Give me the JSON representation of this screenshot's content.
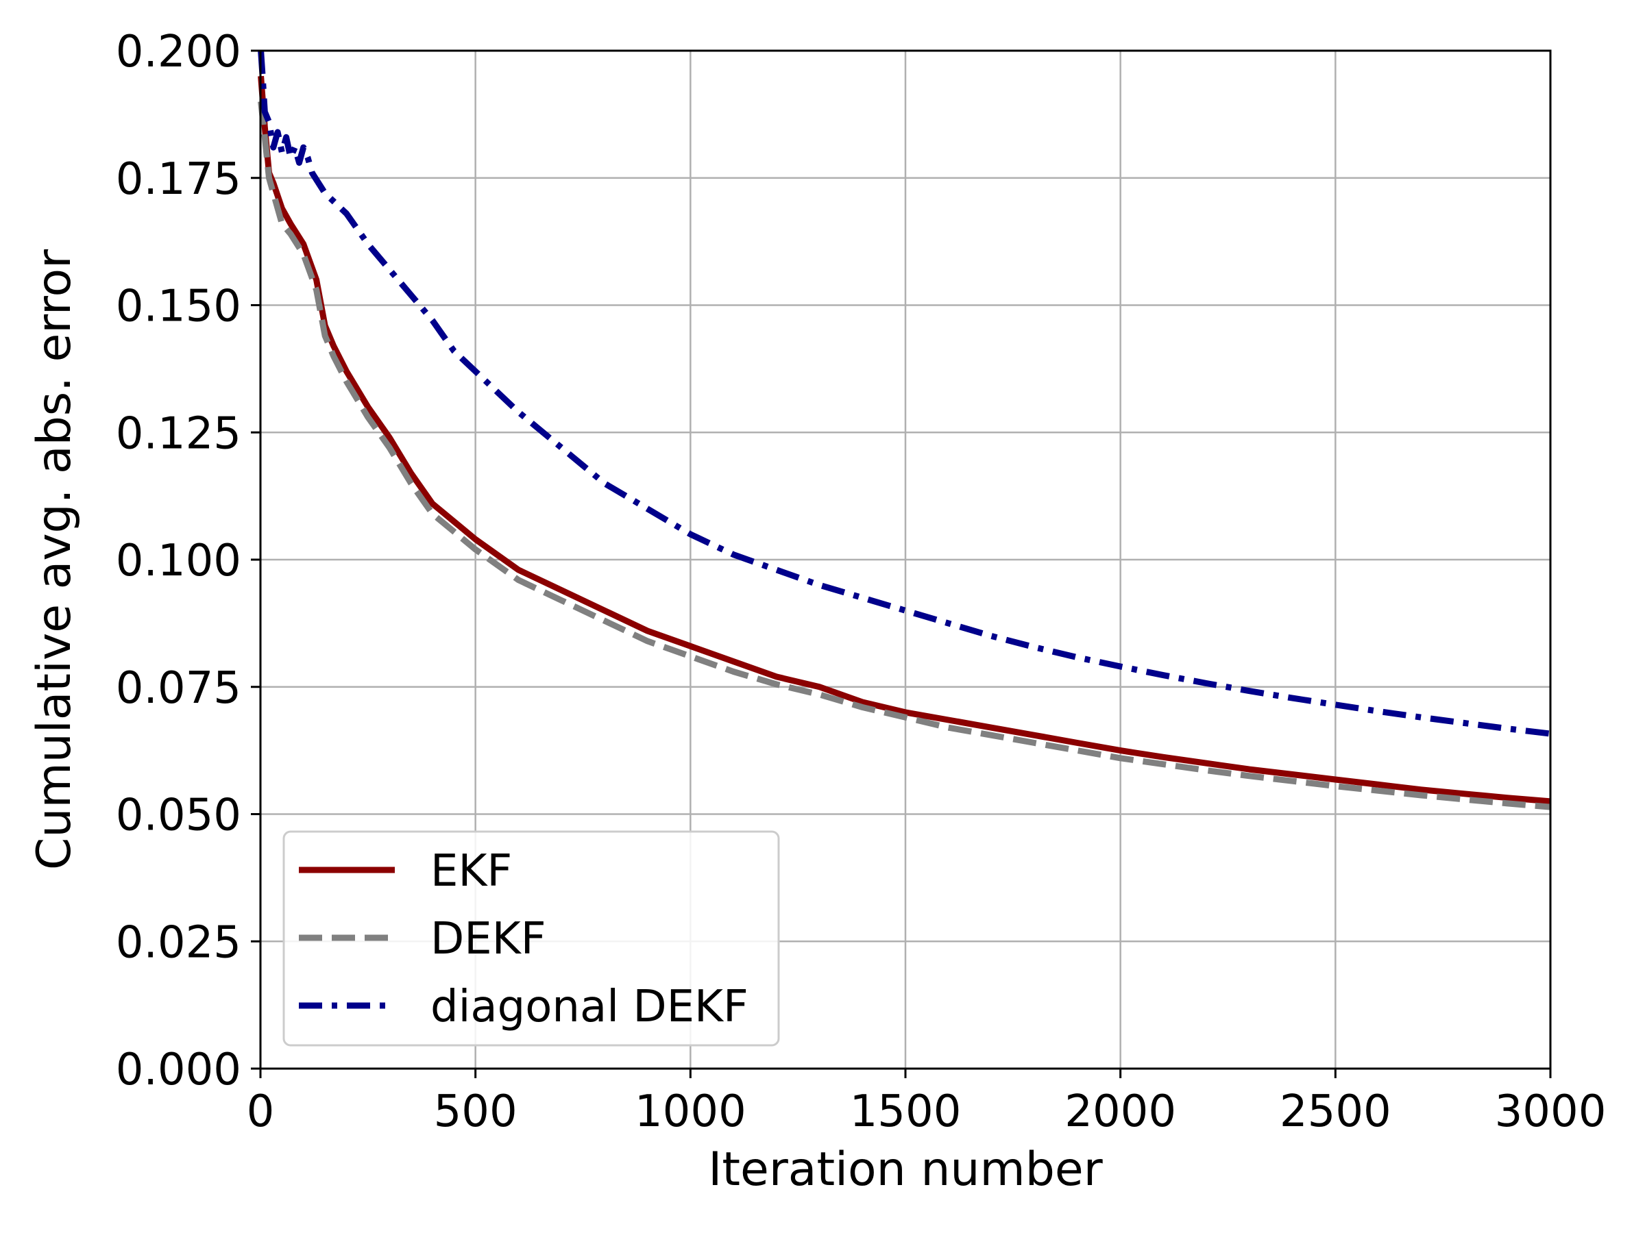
{
  "chart_data": {
    "type": "line",
    "xlabel": "Iteration number",
    "ylabel": "Cumulative avg. abs. error",
    "xlim": [
      0,
      3000
    ],
    "ylim": [
      0,
      0.2
    ],
    "xticks": [
      0,
      500,
      1000,
      1500,
      2000,
      2500,
      3000
    ],
    "xtick_labels": [
      "0",
      "500",
      "1000",
      "1500",
      "2000",
      "2500",
      "3000"
    ],
    "yticks": [
      0,
      0.025,
      0.05,
      0.075,
      0.1,
      0.125,
      0.15,
      0.175,
      0.2
    ],
    "ytick_labels": [
      "0.000",
      "0.025",
      "0.050",
      "0.075",
      "0.100",
      "0.125",
      "0.150",
      "0.175",
      "0.200"
    ],
    "grid": true,
    "legend_position": "lower-left",
    "series": [
      {
        "name": "EKF",
        "color": "#8b0000",
        "style": "solid",
        "x": [
          1,
          10,
          20,
          30,
          50,
          70,
          100,
          130,
          150,
          170,
          200,
          250,
          300,
          350,
          400,
          500,
          600,
          700,
          800,
          900,
          1000,
          1100,
          1200,
          1300,
          1400,
          1500,
          1600,
          1700,
          1800,
          1900,
          2000,
          2100,
          2200,
          2300,
          2400,
          2500,
          2600,
          2700,
          2800,
          2900,
          3000
        ],
        "y": [
          0.195,
          0.185,
          0.176,
          0.174,
          0.169,
          0.166,
          0.162,
          0.155,
          0.146,
          0.142,
          0.137,
          0.13,
          0.124,
          0.117,
          0.111,
          0.104,
          0.098,
          0.094,
          0.09,
          0.086,
          0.083,
          0.08,
          0.077,
          0.075,
          0.072,
          0.07,
          0.0685,
          0.067,
          0.0655,
          0.064,
          0.0625,
          0.0612,
          0.06,
          0.0588,
          0.0578,
          0.0568,
          0.0558,
          0.0548,
          0.054,
          0.0532,
          0.0525
        ]
      },
      {
        "name": "DEKF",
        "color": "#808080",
        "style": "dashed",
        "x": [
          1,
          10,
          20,
          30,
          50,
          70,
          100,
          130,
          150,
          170,
          200,
          250,
          300,
          350,
          400,
          500,
          600,
          700,
          800,
          900,
          1000,
          1100,
          1200,
          1300,
          1400,
          1500,
          1600,
          1700,
          1800,
          1900,
          2000,
          2100,
          2200,
          2300,
          2400,
          2500,
          2600,
          2700,
          2800,
          2900,
          3000
        ],
        "y": [
          0.19,
          0.183,
          0.175,
          0.172,
          0.166,
          0.164,
          0.16,
          0.153,
          0.144,
          0.14,
          0.135,
          0.128,
          0.122,
          0.115,
          0.109,
          0.102,
          0.096,
          0.092,
          0.088,
          0.084,
          0.081,
          0.078,
          0.0755,
          0.0735,
          0.071,
          0.069,
          0.067,
          0.0655,
          0.064,
          0.0625,
          0.061,
          0.0598,
          0.0586,
          0.0575,
          0.0565,
          0.0555,
          0.0546,
          0.0537,
          0.0529,
          0.0521,
          0.0514
        ]
      },
      {
        "name": "diagonal DEKF",
        "color": "#00008b",
        "style": "dashdot",
        "x": [
          1,
          5,
          10,
          20,
          30,
          40,
          50,
          60,
          70,
          80,
          90,
          100,
          110,
          120,
          150,
          200,
          250,
          300,
          350,
          400,
          450,
          500,
          600,
          700,
          800,
          900,
          1000,
          1100,
          1200,
          1300,
          1400,
          1500,
          1600,
          1700,
          1800,
          1900,
          2000,
          2100,
          2200,
          2300,
          2400,
          2500,
          2600,
          2700,
          2800,
          2900,
          3000
        ],
        "y": [
          0.2,
          0.195,
          0.188,
          0.186,
          0.181,
          0.184,
          0.18,
          0.183,
          0.179,
          0.181,
          0.178,
          0.181,
          0.179,
          0.176,
          0.172,
          0.168,
          0.162,
          0.157,
          0.152,
          0.147,
          0.141,
          0.137,
          0.129,
          0.122,
          0.115,
          0.11,
          0.105,
          0.101,
          0.098,
          0.095,
          0.0925,
          0.09,
          0.0875,
          0.085,
          0.0828,
          0.0808,
          0.079,
          0.0773,
          0.0757,
          0.0742,
          0.0728,
          0.0715,
          0.0702,
          0.069,
          0.0679,
          0.0668,
          0.0658
        ]
      }
    ]
  }
}
